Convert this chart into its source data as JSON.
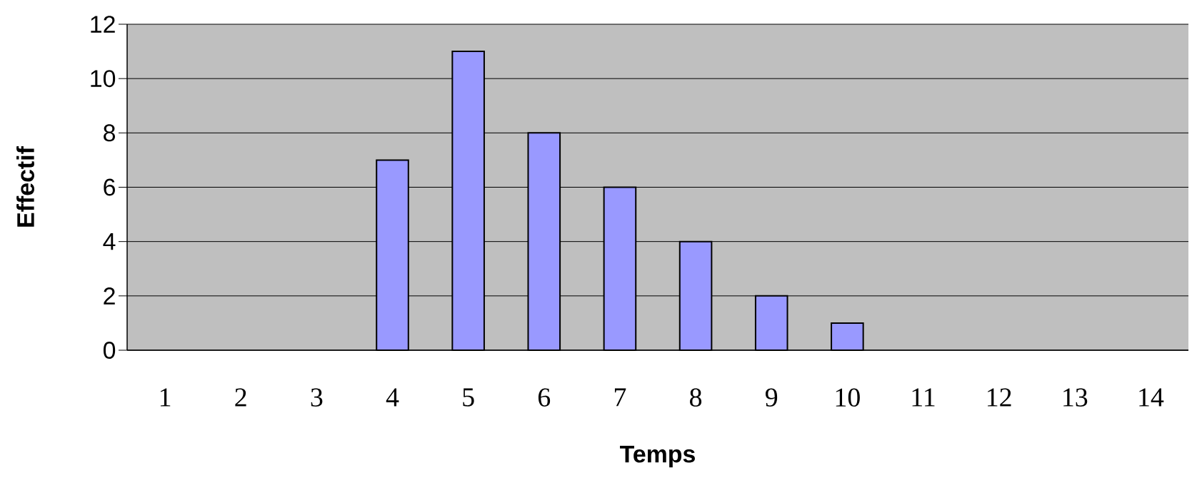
{
  "chart_data": {
    "type": "bar",
    "xlabel": "Temps",
    "ylabel": "Effectif",
    "categories": [
      "1",
      "2",
      "3",
      "4",
      "5",
      "6",
      "7",
      "8",
      "9",
      "10",
      "11",
      "12",
      "13",
      "14"
    ],
    "values": [
      0,
      0,
      0,
      7,
      11,
      8,
      6,
      4,
      2,
      1,
      0,
      0,
      0,
      0
    ],
    "color": "#9999ff",
    "ylim": [
      0,
      12
    ],
    "yticks": [
      0,
      2,
      4,
      6,
      8,
      10,
      12
    ],
    "grid": "y"
  }
}
